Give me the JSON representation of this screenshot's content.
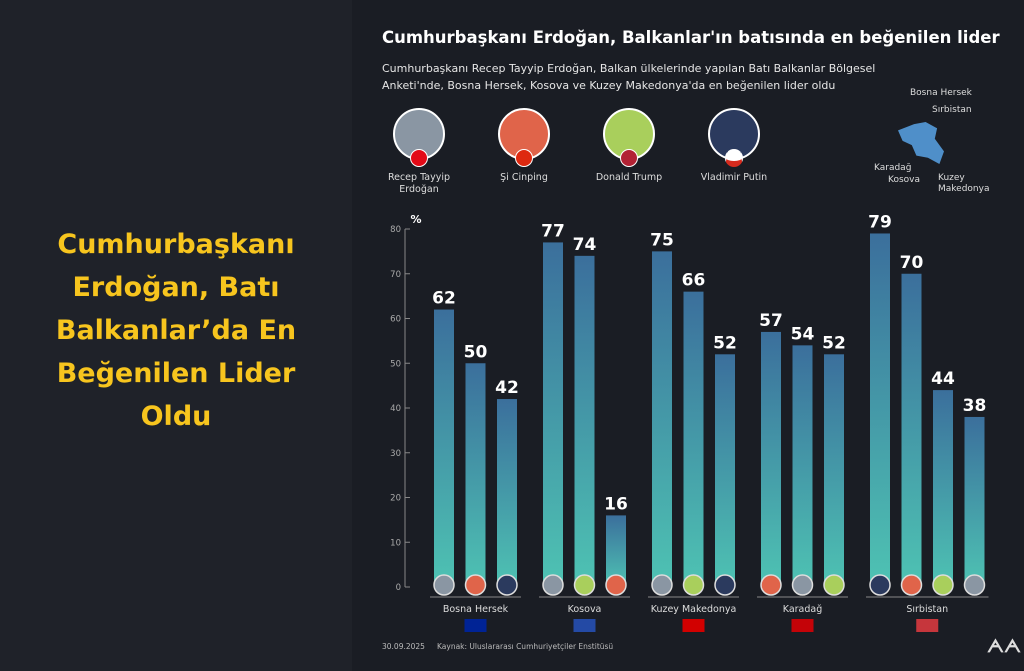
{
  "headline": "Cumhurbaşkanı Erdoğan, Batı Balkanlar’da En Beğenilen Lider Oldu",
  "title": "Cumhurbaşkanı Erdoğan, Balkanlar'ın batısında en beğenilen lider",
  "subtitle": "Cumhurbaşkanı Recep Tayyip Erdoğan, Balkan ülkelerinde yapılan Batı Balkanlar Bölgesel Anketi'nde, Bosna Hersek, Kosova ve Kuzey Makedonya'da en beğenilen lider oldu",
  "leaders": [
    {
      "name": "Recep Tayyip Erdoğan",
      "color": "#8a96a3",
      "flag": "#e30a17"
    },
    {
      "name": "Şi Cinping",
      "color": "#e0644a",
      "flag": "#de2910"
    },
    {
      "name": "Donald Trump",
      "color": "#a9cf5c",
      "flag": "#b22234"
    },
    {
      "name": "Vladimir Putin",
      "color": "#2b3a5e",
      "flag": "#0039a6"
    }
  ],
  "map_labels": [
    "Bosna Hersek",
    "Sırbistan",
    "Karadağ",
    "Kosova",
    "Kuzey Makedonya"
  ],
  "footer": {
    "date": "30.09.2025",
    "source": "Kaynak: Uluslararası Cumhuriyetçiler Enstitüsü",
    "logo": "AA"
  },
  "chart_data": {
    "type": "bar",
    "ylabel": "%",
    "ylim": [
      0,
      80
    ],
    "yticks": [
      0,
      10,
      20,
      30,
      40,
      50,
      60,
      70,
      80
    ],
    "colors": {
      "top": "#3b6f9c",
      "bottom": "#4ec3b3"
    },
    "groups": [
      {
        "country": "Bosna Hersek",
        "flag": "bosnia",
        "bars": [
          {
            "leader": "Recep Tayyip Erdoğan",
            "value": 62
          },
          {
            "leader": "Şi Cinping",
            "value": 50
          },
          {
            "leader": "Vladimir Putin",
            "value": 42
          }
        ]
      },
      {
        "country": "Kosova",
        "flag": "kosovo",
        "bars": [
          {
            "leader": "Recep Tayyip Erdoğan",
            "value": 77
          },
          {
            "leader": "Donald Trump",
            "value": 74
          },
          {
            "leader": "Şi Cinping",
            "value": 16
          }
        ]
      },
      {
        "country": "Kuzey Makedonya",
        "flag": "macedonia",
        "bars": [
          {
            "leader": "Recep Tayyip Erdoğan",
            "value": 75
          },
          {
            "leader": "Donald Trump",
            "value": 66
          },
          {
            "leader": "Vladimir Putin",
            "value": 52
          }
        ]
      },
      {
        "country": "Karadağ",
        "flag": "montenegro",
        "bars": [
          {
            "leader": "Şi Cinping",
            "value": 57
          },
          {
            "leader": "Recep Tayyip Erdoğan / Vladimir Putin",
            "value": 54
          },
          {
            "leader": "Donald Trump",
            "value": 52
          }
        ]
      },
      {
        "country": "Sırbistan",
        "flag": "serbia",
        "bars": [
          {
            "leader": "Vladimir Putin",
            "value": 79
          },
          {
            "leader": "Şi Cinping",
            "value": 70
          },
          {
            "leader": "Donald Trump",
            "value": 44
          },
          {
            "leader": "Recep Tayyip Erdoğan",
            "value": 38
          }
        ]
      }
    ]
  }
}
